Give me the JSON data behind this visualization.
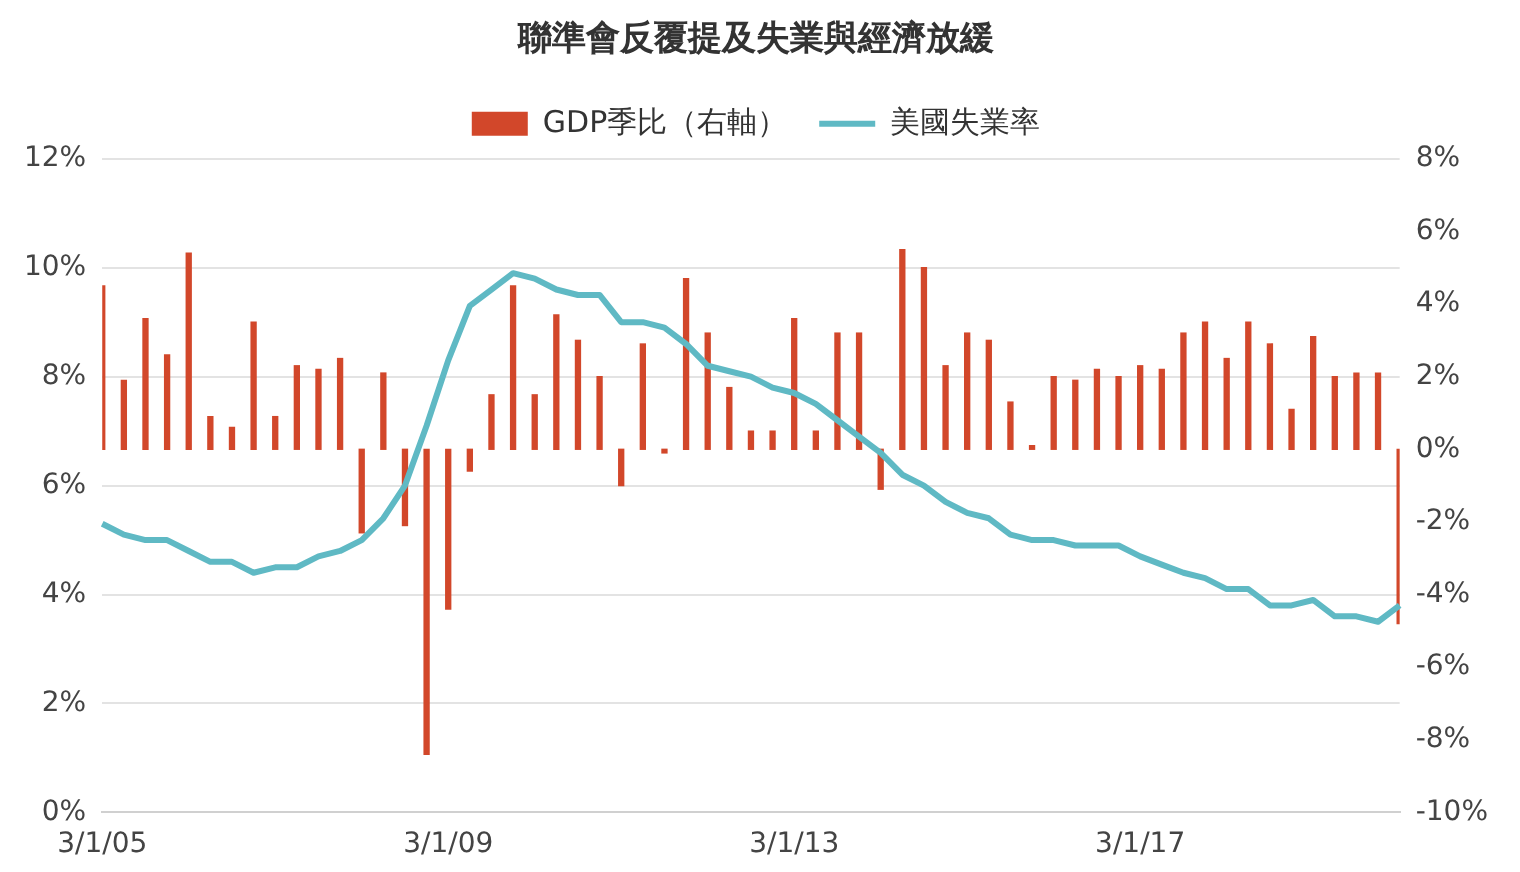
{
  "chart_data": {
    "type": "bar",
    "title": "聯準會反覆提及失業與經濟放緩",
    "categories": [
      "3/1/05",
      null,
      null,
      null,
      null,
      null,
      null,
      null,
      null,
      null,
      null,
      null,
      null,
      null,
      null,
      null,
      "3/1/09",
      null,
      null,
      null,
      null,
      null,
      null,
      null,
      null,
      null,
      null,
      null,
      null,
      null,
      null,
      null,
      "3/1/13",
      null,
      null,
      null,
      null,
      null,
      null,
      null,
      null,
      null,
      null,
      null,
      null,
      null,
      null,
      null,
      "3/1/17",
      null,
      null,
      null,
      null,
      null,
      null,
      null,
      null,
      null,
      null,
      null,
      null
    ],
    "series": [
      {
        "name": "GDP季比（右軸）",
        "axis": "y2",
        "color": "#d2472a",
        "values": [
          4.5,
          1.9,
          3.6,
          2.6,
          5.4,
          0.9,
          0.6,
          3.5,
          0.9,
          2.3,
          2.2,
          2.5,
          -2.3,
          2.1,
          -2.1,
          -8.4,
          -4.4,
          -0.6,
          1.5,
          4.5,
          1.5,
          3.7,
          3.0,
          2.0,
          -1.0,
          2.9,
          -0.1,
          4.7,
          3.2,
          1.7,
          0.5,
          0.5,
          3.6,
          0.5,
          3.2,
          3.2,
          -1.1,
          5.5,
          5.0,
          2.3,
          3.2,
          3.0,
          1.3,
          0.1,
          2.0,
          1.9,
          2.2,
          2.0,
          2.3,
          2.2,
          3.2,
          3.5,
          2.5,
          3.5,
          2.9,
          1.1,
          3.1,
          2.0,
          2.1,
          2.1,
          -4.8
        ]
      },
      {
        "name": "美國失業率",
        "type": "line",
        "color": "#5fb9c4",
        "values": [
          5.3,
          5.1,
          5.0,
          5.0,
          4.8,
          4.6,
          4.6,
          4.4,
          4.5,
          4.5,
          4.7,
          4.8,
          5.0,
          5.4,
          6.0,
          7.1,
          8.3,
          9.3,
          9.6,
          9.9,
          9.8,
          9.6,
          9.5,
          9.5,
          9.0,
          9.0,
          8.9,
          8.6,
          8.2,
          8.1,
          8.0,
          7.8,
          7.7,
          7.5,
          7.2,
          6.9,
          6.6,
          6.2,
          6.0,
          5.7,
          5.5,
          5.4,
          5.1,
          5.0,
          5.0,
          4.9,
          4.9,
          4.9,
          4.7,
          4.55,
          4.4,
          4.3,
          4.1,
          4.1,
          3.8,
          3.8,
          3.9,
          3.6,
          3.6,
          3.5,
          3.8
        ]
      }
    ],
    "ylim": [
      0,
      12
    ],
    "yticks": [
      {
        "value": 0,
        "label": "0%"
      },
      {
        "value": 2,
        "label": "2%"
      },
      {
        "value": 4,
        "label": "4%"
      },
      {
        "value": 6,
        "label": "6%"
      },
      {
        "value": 8,
        "label": "8%"
      },
      {
        "value": 10,
        "label": "10%"
      },
      {
        "value": 12,
        "label": "12%"
      }
    ],
    "y2lim": [
      -10,
      8
    ],
    "y2ticks": [
      {
        "value": -10,
        "label": "-10%"
      },
      {
        "value": -8,
        "label": "-8%"
      },
      {
        "value": -6,
        "label": "-6%"
      },
      {
        "value": -4,
        "label": "-4%"
      },
      {
        "value": -2,
        "label": "-2%"
      },
      {
        "value": 0,
        "label": "0%"
      },
      {
        "value": 2,
        "label": "2%"
      },
      {
        "value": 4,
        "label": "4%"
      },
      {
        "value": 6,
        "label": "6%"
      },
      {
        "value": 8,
        "label": "8%"
      }
    ],
    "grid": "y",
    "legend": "top",
    "marker": "none",
    "line_style": "solid"
  }
}
